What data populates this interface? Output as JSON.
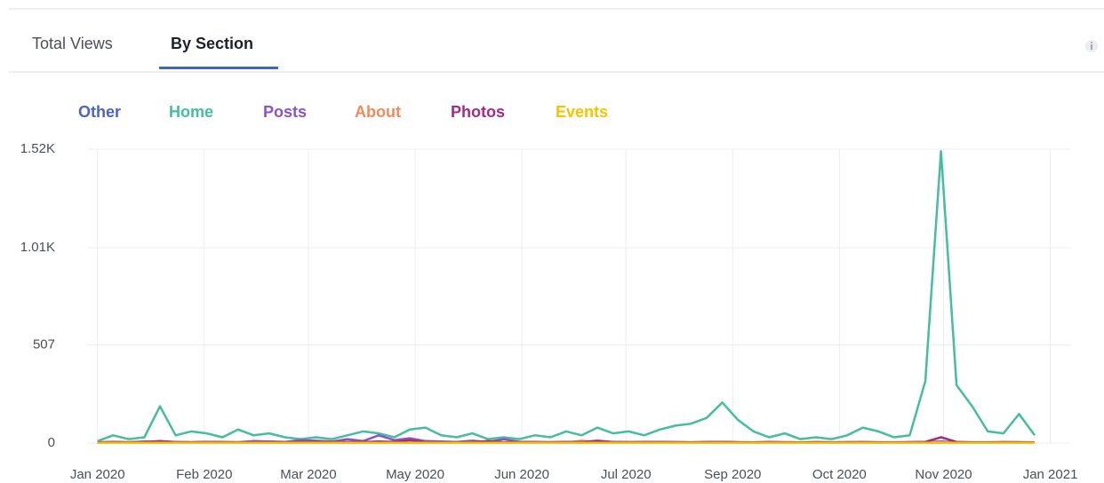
{
  "tabs": [
    "Total Views",
    "By Section"
  ],
  "chart_data": {
    "type": "line",
    "x": [
      0,
      6,
      12,
      18,
      24,
      30,
      36,
      42,
      48,
      54,
      60,
      66,
      72,
      78,
      84,
      90,
      96,
      102,
      108,
      114,
      120,
      126,
      132,
      138,
      144,
      150,
      156,
      162,
      168,
      174,
      180,
      186,
      192,
      198,
      204,
      210,
      216,
      222,
      228,
      234,
      240,
      246,
      252,
      258,
      264,
      270,
      276,
      282,
      288,
      294,
      300,
      306,
      312,
      318,
      324,
      330,
      336,
      342,
      348,
      354,
      360
    ],
    "xlim": [
      -4,
      374
    ],
    "xticks": [
      {
        "value": 0,
        "label": "Jan 2020"
      },
      {
        "value": 41,
        "label": "Feb 2020"
      },
      {
        "value": 81,
        "label": "Mar 2020"
      },
      {
        "value": 122,
        "label": "May 2020"
      },
      {
        "value": 163,
        "label": "Jun 2020"
      },
      {
        "value": 203,
        "label": "Jul 2020"
      },
      {
        "value": 244,
        "label": "Sep 2020"
      },
      {
        "value": 285,
        "label": "Oct 2020"
      },
      {
        "value": 325,
        "label": "Nov 2020"
      },
      {
        "value": 366,
        "label": "Jan 2021"
      }
    ],
    "ylim": [
      0,
      1520
    ],
    "yticks": [
      0,
      507,
      {
        "value": 1010,
        "label": "1.01K"
      },
      {
        "value": 1520,
        "label": "1.52K"
      }
    ],
    "grid": true,
    "series": [
      {
        "name": "Other",
        "color": "#4a63c4",
        "values": [
          2,
          3,
          2,
          4,
          3,
          2,
          3,
          2,
          2,
          3,
          2,
          4,
          2,
          3,
          2,
          2,
          3,
          2,
          4,
          3,
          2,
          3,
          2,
          2,
          3,
          2,
          2,
          3,
          2,
          4,
          3,
          2,
          3,
          2,
          2,
          3,
          4,
          3,
          2,
          3,
          5,
          3,
          2,
          3,
          2,
          2,
          3,
          2,
          3,
          4,
          3,
          2,
          3,
          5,
          8,
          4,
          3,
          2,
          3,
          4,
          2
        ]
      },
      {
        "name": "Home",
        "color": "#45bd9e",
        "values": [
          10,
          40,
          20,
          30,
          190,
          40,
          60,
          50,
          30,
          70,
          40,
          50,
          30,
          20,
          30,
          20,
          40,
          60,
          50,
          30,
          70,
          80,
          40,
          30,
          50,
          20,
          30,
          20,
          40,
          30,
          60,
          40,
          80,
          50,
          60,
          40,
          70,
          90,
          100,
          130,
          210,
          120,
          60,
          30,
          50,
          20,
          30,
          20,
          40,
          80,
          60,
          30,
          40,
          320,
          1510,
          300,
          190,
          60,
          50,
          150,
          40
        ]
      },
      {
        "name": "Posts",
        "color": "#8c53c9",
        "values": [
          3,
          5,
          4,
          8,
          6,
          5,
          4,
          6,
          5,
          4,
          10,
          8,
          6,
          15,
          12,
          8,
          20,
          10,
          40,
          15,
          25,
          10,
          8,
          6,
          12,
          5,
          20,
          6,
          5,
          4,
          6,
          5,
          8,
          6,
          5,
          4,
          6,
          5,
          4,
          5,
          6,
          4,
          3,
          5,
          4,
          3,
          4,
          3,
          5,
          4,
          3,
          4,
          3,
          5,
          6,
          4,
          3,
          4,
          3,
          4,
          3
        ]
      },
      {
        "name": "About",
        "color": "#f08a5d",
        "values": [
          2,
          3,
          2,
          3,
          4,
          2,
          3,
          2,
          3,
          2,
          3,
          2,
          4,
          3,
          2,
          3,
          2,
          3,
          2,
          3,
          4,
          3,
          2,
          3,
          2,
          3,
          2,
          3,
          2,
          3,
          2,
          12,
          3,
          2,
          3,
          2,
          3,
          2,
          3,
          2,
          4,
          3,
          2,
          3,
          2,
          3,
          2,
          3,
          2,
          3,
          2,
          3,
          2,
          4,
          3,
          2,
          3,
          2,
          3,
          2,
          3
        ]
      },
      {
        "name": "Photos",
        "color": "#a3298a",
        "values": [
          3,
          6,
          4,
          5,
          10,
          5,
          4,
          6,
          5,
          4,
          3,
          5,
          4,
          6,
          5,
          4,
          6,
          5,
          8,
          6,
          15,
          5,
          4,
          3,
          5,
          10,
          4,
          6,
          5,
          4,
          6,
          5,
          12,
          5,
          4,
          6,
          5,
          4,
          3,
          5,
          6,
          4,
          3,
          5,
          4,
          3,
          5,
          4,
          3,
          5,
          4,
          3,
          5,
          6,
          30,
          6,
          4,
          3,
          5,
          4,
          3
        ]
      },
      {
        "name": "Events",
        "color": "#f5c400",
        "values": [
          1,
          1,
          1,
          1,
          1,
          1,
          1,
          1,
          1,
          1,
          1,
          1,
          1,
          1,
          1,
          1,
          1,
          1,
          1,
          1,
          1,
          1,
          1,
          1,
          1,
          1,
          1,
          1,
          1,
          1,
          1,
          1,
          1,
          1,
          1,
          1,
          1,
          1,
          1,
          1,
          1,
          1,
          1,
          1,
          1,
          1,
          1,
          1,
          1,
          1,
          1,
          1,
          1,
          1,
          1,
          1,
          1,
          1,
          1,
          1,
          1
        ]
      }
    ]
  }
}
